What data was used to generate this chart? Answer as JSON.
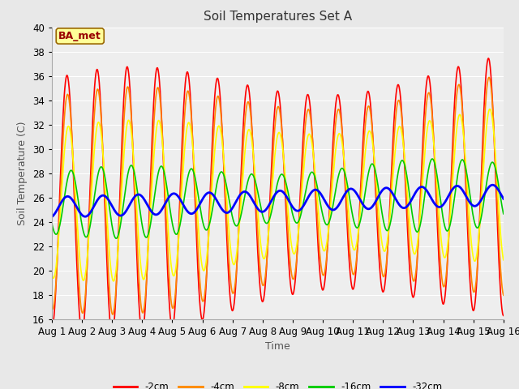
{
  "title": "Soil Temperatures Set A",
  "xlabel": "Time",
  "ylabel": "Soil Temperature (C)",
  "ylim": [
    16,
    40
  ],
  "xlim": [
    0,
    15
  ],
  "yticks": [
    16,
    18,
    20,
    22,
    24,
    26,
    28,
    30,
    32,
    34,
    36,
    38,
    40
  ],
  "xtick_labels": [
    "Aug 1",
    "Aug 2",
    "Aug 3",
    "Aug 4",
    "Aug 5",
    "Aug 6",
    "Aug 7",
    "Aug 8",
    "Aug 9",
    "Aug 10",
    "Aug 11",
    "Aug 12",
    "Aug 13",
    "Aug 14",
    "Aug 15",
    "Aug 16"
  ],
  "legend_entries": [
    "-2cm",
    "-4cm",
    "-8cm",
    "-16cm",
    "-32cm"
  ],
  "line_colors": [
    "#ff0000",
    "#ff8800",
    "#ffff00",
    "#00cc00",
    "#0000ff"
  ],
  "line_widths": [
    1.2,
    1.2,
    1.2,
    1.2,
    2.0
  ],
  "label_box_text": "BA_met",
  "label_box_facecolor": "#ffff99",
  "label_box_edgecolor": "#996600",
  "label_box_textcolor": "#990000",
  "fig_facecolor": "#e8e8e8",
  "plot_facecolor": "#eeeeee",
  "grid_color": "#ffffff",
  "title_fontsize": 11,
  "axis_fontsize": 9,
  "tick_fontsize": 8.5,
  "n_points": 1440,
  "days": 15
}
